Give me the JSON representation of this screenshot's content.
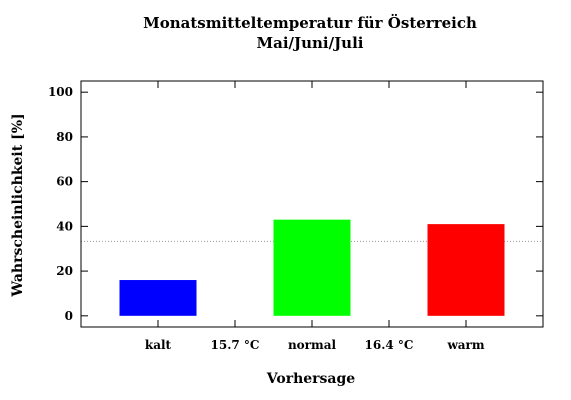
{
  "chart_data": {
    "type": "bar",
    "title": [
      "Monatsmitteltemperatur für Österreich",
      "Mai/Juni/Juli"
    ],
    "xlabel": "Vorhersage",
    "ylabel": "Wahrscheinlichkeit [%]",
    "ylim": [
      -5,
      105
    ],
    "yticks": [
      0,
      20,
      40,
      60,
      80,
      100
    ],
    "x_positions": [
      {
        "label": "kalt",
        "pos": 1
      },
      {
        "label": "15.7 °C",
        "pos": 1.5
      },
      {
        "label": "normal",
        "pos": 2
      },
      {
        "label": "16.4 °C",
        "pos": 2.5
      },
      {
        "label": "warm",
        "pos": 3
      }
    ],
    "xlim": [
      0.5,
      3.5
    ],
    "categories": [
      "kalt",
      "normal",
      "warm"
    ],
    "values": [
      16,
      43,
      41
    ],
    "bar_colors": [
      "#0000ff",
      "#00ff00",
      "#ff0000"
    ],
    "reference_line": 33.3,
    "reference_line_color": "#999999",
    "grid": false
  }
}
